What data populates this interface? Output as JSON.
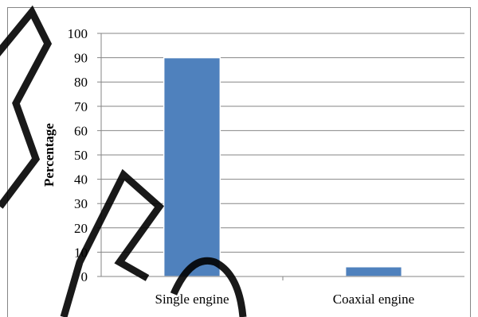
{
  "chart_data": {
    "type": "bar",
    "categories": [
      "Single engine",
      "Coaxial engine"
    ],
    "values": [
      90,
      4
    ],
    "ylabel": "Percentage",
    "xlabel": "",
    "ylim": [
      0,
      100
    ],
    "yticks": [
      0,
      10,
      20,
      30,
      40,
      50,
      60,
      70,
      80,
      90,
      100
    ],
    "grid": true,
    "legend": "none",
    "bar_color": "#4f81bd",
    "grid_color": "#868686"
  }
}
